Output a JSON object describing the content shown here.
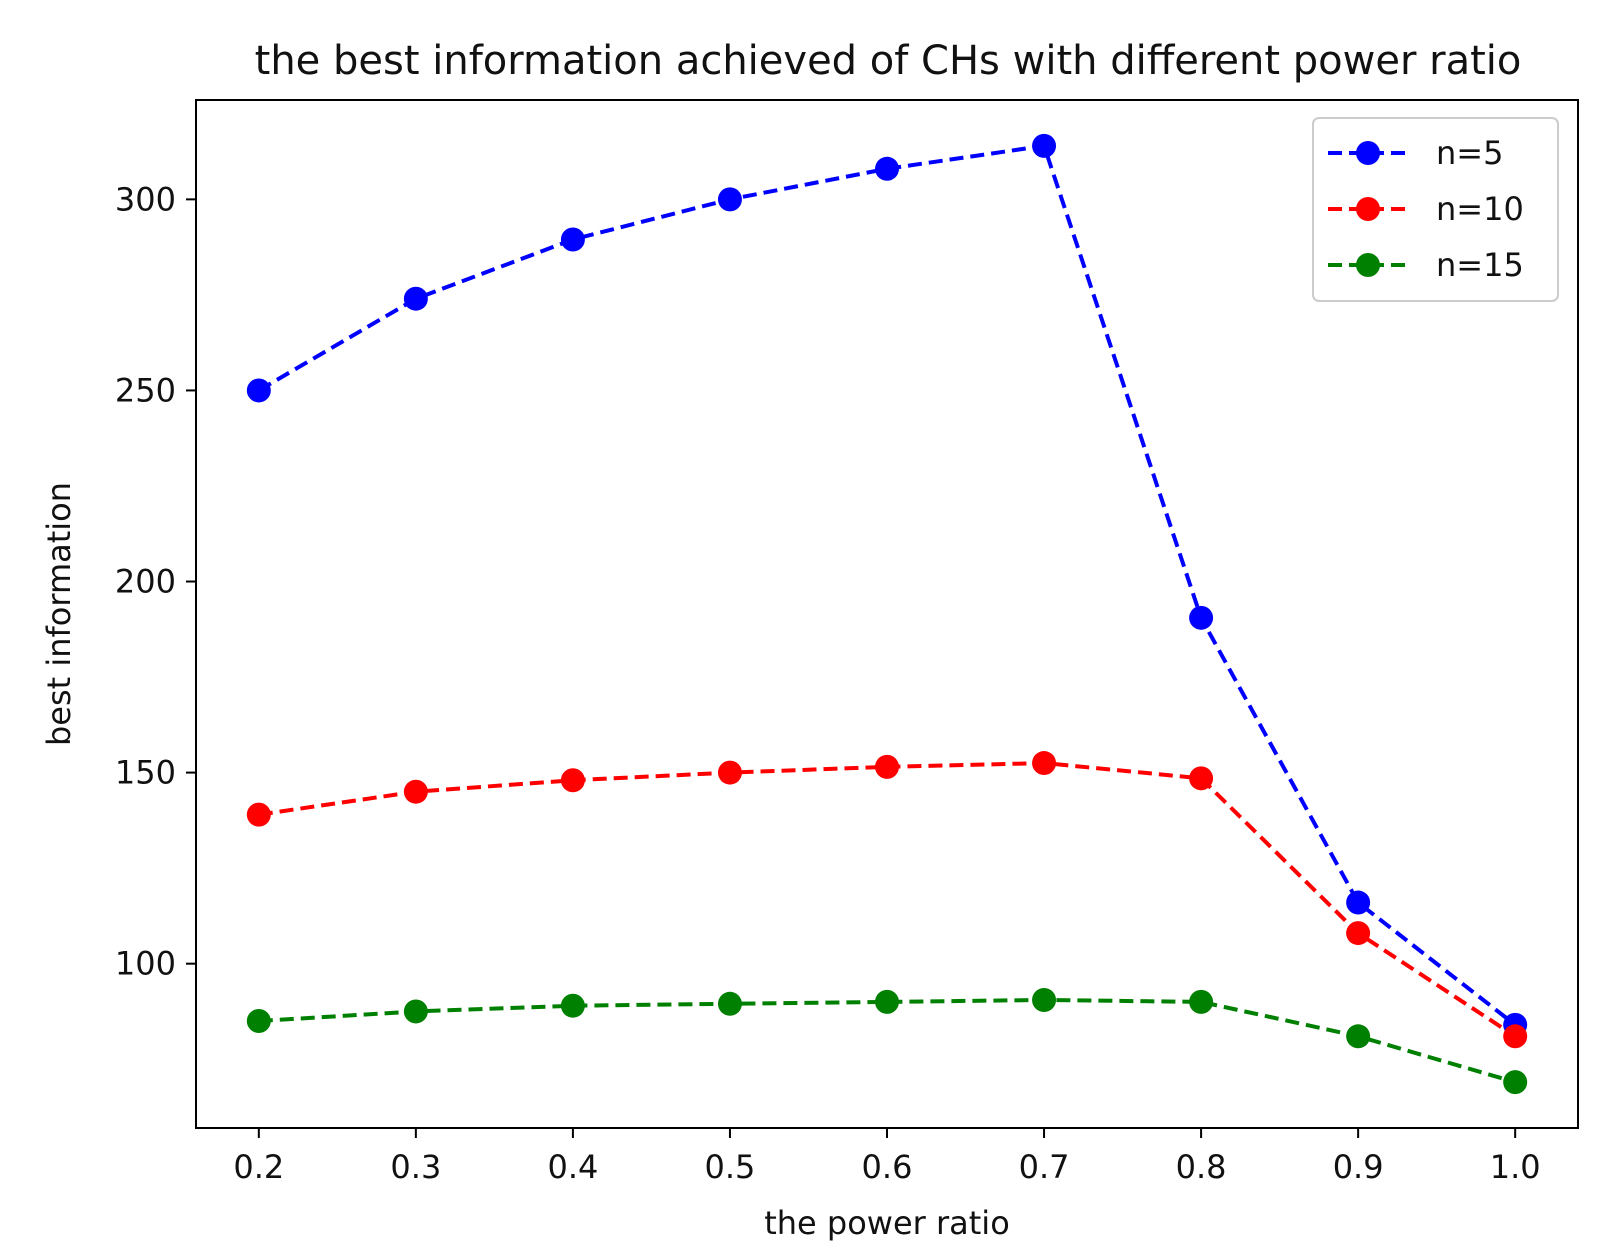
{
  "chart_data": {
    "type": "line",
    "title": "the best information achieved of CHs with different power ratio",
    "xlabel": "the power ratio",
    "ylabel": "best information",
    "x": [
      0.2,
      0.3,
      0.4,
      0.5,
      0.6,
      0.7,
      0.8,
      0.9,
      1.0
    ],
    "x_tick_labels": [
      "0.2",
      "0.3",
      "0.4",
      "0.5",
      "0.6",
      "0.7",
      "0.8",
      "0.9",
      "1.0"
    ],
    "y_ticks": [
      100,
      150,
      200,
      250,
      300
    ],
    "y_tick_labels": [
      "100",
      "150",
      "200",
      "250",
      "300"
    ],
    "xlim": [
      0.16,
      1.04
    ],
    "ylim": [
      57,
      326
    ],
    "grid": false,
    "legend_position": "top-right",
    "line_style": "dashed",
    "marker": "circle",
    "series": [
      {
        "name": "n=5",
        "color": "#0000ff",
        "values": [
          250,
          274,
          289.5,
          300,
          308,
          314,
          190.5,
          116,
          84
        ]
      },
      {
        "name": "n=10",
        "color": "#ff0000",
        "values": [
          139,
          145,
          148,
          150,
          151.5,
          152.5,
          148.5,
          108,
          81
        ]
      },
      {
        "name": "n=15",
        "color": "#008000",
        "values": [
          85,
          87.5,
          89,
          89.5,
          90,
          90.5,
          90,
          81,
          69
        ]
      }
    ]
  }
}
